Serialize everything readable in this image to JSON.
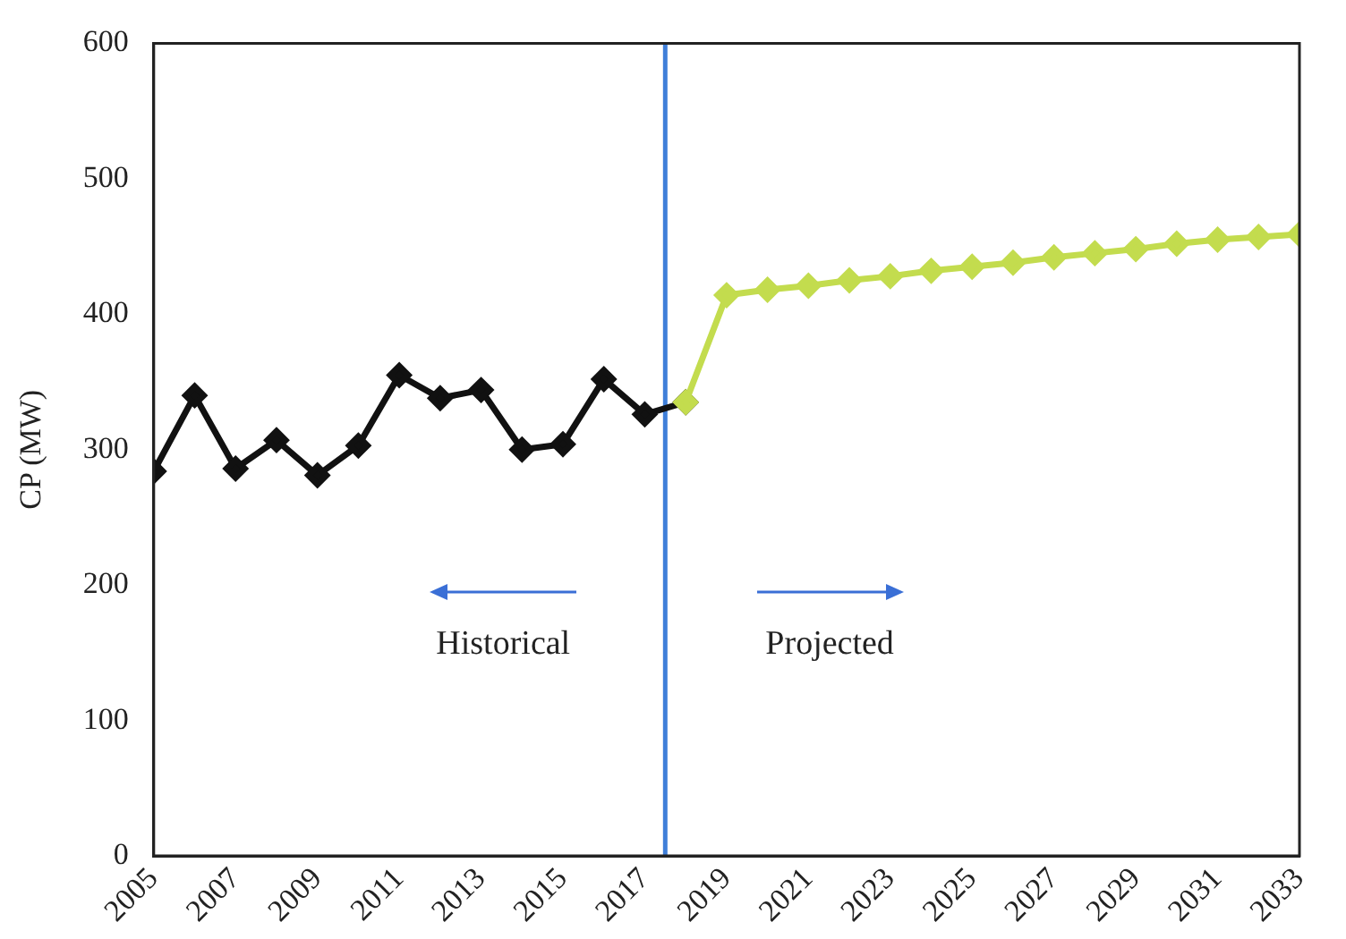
{
  "chart_data": {
    "type": "line",
    "ylabel": "CP (MW)",
    "xlim": [
      2005,
      2033
    ],
    "xticks": [
      2005,
      2007,
      2009,
      2011,
      2013,
      2015,
      2017,
      2019,
      2021,
      2023,
      2025,
      2027,
      2029,
      2031,
      2033
    ],
    "ylim": [
      0,
      600
    ],
    "yticks": [
      0,
      100,
      200,
      300,
      400,
      500,
      600
    ],
    "grid": false,
    "legend": false,
    "marker": "diamond",
    "line_style": "solid",
    "series": [
      {
        "color": "#111111",
        "x": [
          2005,
          2006,
          2007,
          2008,
          2009,
          2010,
          2011,
          2012,
          2013,
          2014,
          2015,
          2016,
          2017,
          2018
        ],
        "values": [
          284,
          340,
          286,
          307,
          281,
          303,
          355,
          338,
          344,
          300,
          304,
          352,
          326,
          335
        ]
      },
      {
        "color": "#c3dc4e",
        "x": [
          2018,
          2019,
          2020,
          2021,
          2022,
          2023,
          2024,
          2025,
          2026,
          2027,
          2028,
          2029,
          2030,
          2031,
          2032,
          2033
        ],
        "values": [
          335,
          414,
          418,
          421,
          425,
          428,
          432,
          435,
          438,
          442,
          445,
          448,
          452,
          455,
          457,
          459
        ]
      }
    ],
    "ref_lines": [
      {
        "axis": "x",
        "value": 2017.5,
        "color": "#3f7fd9"
      }
    ],
    "annotations": [
      "Historical",
      "Projected"
    ]
  }
}
